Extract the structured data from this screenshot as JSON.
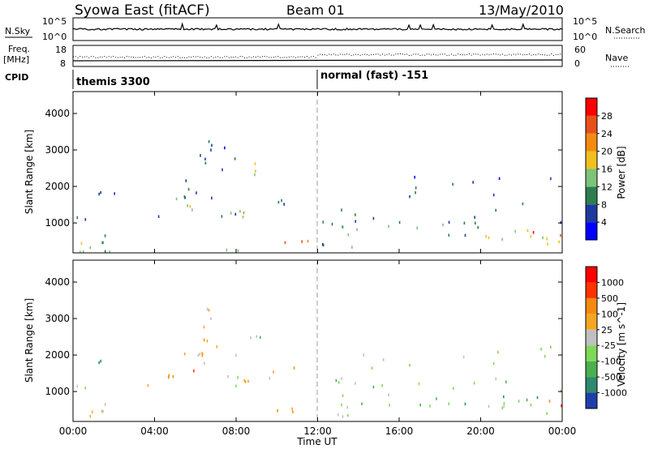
{
  "header": {
    "title": "Syowa East (fitACF)",
    "beam": "Beam 01",
    "date": "13/May/2010"
  },
  "status_panels": {
    "nsky_label": "N.Sky",
    "nsky_ticks": [
      "10^5",
      "10^0"
    ],
    "nsearch_label": "N.Search",
    "nsearch_ticks": [
      "10^5",
      "10^0"
    ],
    "freq_label_top": "Freq.",
    "freq_label_unit": "[MHz]",
    "freq_ticks": [
      "18",
      "8"
    ],
    "nave_label": "Nave",
    "nave_ticks": [
      "60",
      "0"
    ],
    "cpid_label": "CPID",
    "cpid_segments": [
      {
        "text": "themis 3300",
        "start_hour": 0
      },
      {
        "text": "normal (fast) -151",
        "start_hour": 12
      }
    ]
  },
  "x_axis": {
    "label": "Time UT",
    "ticks": [
      "00:00",
      "04:00",
      "08:00",
      "12:00",
      "16:00",
      "20:00",
      "00:00"
    ]
  },
  "chart_data": [
    {
      "type": "heatmap",
      "panel": "power",
      "xlabel": "Time UT",
      "ylabel": "Slant Range [km]",
      "xlim": [
        0,
        24
      ],
      "ylim": [
        180,
        4600
      ],
      "yticks": [
        1000,
        2000,
        3000,
        4000
      ],
      "colorbar": {
        "label": "Power [dB]",
        "ticks": [
          "4",
          "8",
          "12",
          "16",
          "20",
          "24",
          "28"
        ],
        "colors": [
          "#0000ff",
          "#1e3a9e",
          "#2e7d4f",
          "#7cc47a",
          "#f0c020",
          "#f58a10",
          "#e8501a",
          "#ff0000"
        ]
      },
      "blobs": [
        {
          "t0": 0.0,
          "t1": 2.4,
          "r0": 1100,
          "r1": 1220,
          "c": 0.15,
          "d": 0.85
        },
        {
          "t0": 1.2,
          "t1": 1.8,
          "r0": 1400,
          "r1": 2000,
          "c": 0.2,
          "d": 0.6
        },
        {
          "t0": 1.9,
          "t1": 2.2,
          "r0": 1700,
          "r1": 2100,
          "c": 0.2,
          "d": 0.5
        },
        {
          "t0": 0.3,
          "t1": 2.0,
          "r0": 300,
          "r1": 800,
          "c": 0.45,
          "d": 0.55
        },
        {
          "t0": 0.0,
          "t1": 10.0,
          "r0": 220,
          "r1": 300,
          "c": 0.3,
          "d": 0.7
        },
        {
          "t0": 3.6,
          "t1": 4.6,
          "r0": 1150,
          "r1": 1300,
          "c": 0.2,
          "d": 0.6
        },
        {
          "t0": 4.6,
          "t1": 6.2,
          "r0": 1350,
          "r1": 1700,
          "c": 0.55,
          "d": 0.75
        },
        {
          "t0": 5.2,
          "t1": 6.8,
          "r0": 1700,
          "r1": 2500,
          "c": 0.2,
          "d": 0.5
        },
        {
          "t0": 6.0,
          "t1": 8.0,
          "r0": 2000,
          "r1": 3300,
          "c": 0.2,
          "d": 0.35
        },
        {
          "t0": 7.0,
          "t1": 8.5,
          "r0": 1000,
          "r1": 1500,
          "c": 0.3,
          "d": 0.5
        },
        {
          "t0": 8.2,
          "t1": 9.8,
          "r0": 1200,
          "r1": 1400,
          "c": 0.55,
          "d": 0.7
        },
        {
          "t0": 8.4,
          "t1": 9.6,
          "r0": 2300,
          "r1": 2700,
          "c": 0.45,
          "d": 0.55
        },
        {
          "t0": 9.5,
          "t1": 11.2,
          "r0": 1400,
          "r1": 1800,
          "c": 0.3,
          "d": 0.5
        },
        {
          "t0": 9.8,
          "t1": 12.0,
          "r0": 420,
          "r1": 580,
          "c": 0.85,
          "d": 0.9
        },
        {
          "t0": 12.0,
          "t1": 15.0,
          "r0": 330,
          "r1": 470,
          "c": 0.3,
          "d": 0.7
        },
        {
          "t0": 12.0,
          "t1": 24.0,
          "r0": 1000,
          "r1": 1400,
          "c": 0.2,
          "d": 0.25
        },
        {
          "t0": 13.0,
          "t1": 20.5,
          "r0": 600,
          "r1": 1100,
          "c": 0.3,
          "d": 0.3
        },
        {
          "t0": 14.0,
          "t1": 24.0,
          "r0": 1500,
          "r1": 2300,
          "c": 0.2,
          "d": 0.12
        },
        {
          "t0": 20.0,
          "t1": 24.0,
          "r0": 400,
          "r1": 900,
          "c": 0.45,
          "d": 0.5
        },
        {
          "t0": 22.5,
          "t1": 24.0,
          "r0": 600,
          "r1": 800,
          "c": 0.8,
          "d": 0.8
        }
      ]
    },
    {
      "type": "heatmap",
      "panel": "velocity",
      "xlabel": "Time UT",
      "ylabel": "Slant Range [km]",
      "xlim": [
        0,
        24
      ],
      "ylim": [
        180,
        4600
      ],
      "yticks": [
        1000,
        2000,
        3000,
        4000
      ],
      "colorbar": {
        "label": "Velocity [m s^-1]",
        "ticks": [
          "1000",
          "500",
          "100",
          "25",
          "-25",
          "-100",
          "-500",
          "-1000"
        ],
        "colors": [
          "#1f3fa8",
          "#2d8a6e",
          "#4caf50",
          "#7ed957",
          "#c0c0c0",
          "#f5a623",
          "#f58a10",
          "#ff3300",
          "#ff0000"
        ]
      },
      "blobs": [
        {
          "t0": 0.0,
          "t1": 2.4,
          "r0": 1100,
          "r1": 1220,
          "c": 0.45,
          "d": 0.85
        },
        {
          "t0": 1.2,
          "t1": 1.8,
          "r0": 1400,
          "r1": 2000,
          "c": 0.25,
          "d": 0.6
        },
        {
          "t0": 0.3,
          "t1": 2.0,
          "r0": 300,
          "r1": 800,
          "c": 0.65,
          "d": 0.55
        },
        {
          "t0": 3.6,
          "t1": 4.6,
          "r0": 1150,
          "r1": 1300,
          "c": 0.5,
          "d": 0.6
        },
        {
          "t0": 4.6,
          "t1": 6.2,
          "r0": 1350,
          "r1": 1700,
          "c": 0.68,
          "d": 0.75
        },
        {
          "t0": 5.2,
          "t1": 6.8,
          "r0": 1700,
          "r1": 2500,
          "c": 0.62,
          "d": 0.5
        },
        {
          "t0": 6.0,
          "t1": 8.0,
          "r0": 2000,
          "r1": 3300,
          "c": 0.6,
          "d": 0.35
        },
        {
          "t0": 7.0,
          "t1": 8.5,
          "r0": 1000,
          "r1": 1500,
          "c": 0.5,
          "d": 0.5
        },
        {
          "t0": 8.2,
          "t1": 9.8,
          "r0": 1200,
          "r1": 1400,
          "c": 0.65,
          "d": 0.7
        },
        {
          "t0": 8.4,
          "t1": 9.6,
          "r0": 2300,
          "r1": 2700,
          "c": 0.4,
          "d": 0.55
        },
        {
          "t0": 9.5,
          "t1": 11.2,
          "r0": 1400,
          "r1": 1800,
          "c": 0.66,
          "d": 0.5
        },
        {
          "t0": 9.8,
          "t1": 12.0,
          "r0": 420,
          "r1": 580,
          "c": 0.6,
          "d": 0.9
        },
        {
          "t0": 12.0,
          "t1": 15.0,
          "r0": 330,
          "r1": 470,
          "c": 0.5,
          "d": 0.7
        },
        {
          "t0": 12.0,
          "t1": 24.0,
          "r0": 1000,
          "r1": 1400,
          "c": 0.35,
          "d": 0.25
        },
        {
          "t0": 13.0,
          "t1": 20.5,
          "r0": 600,
          "r1": 1100,
          "c": 0.32,
          "d": 0.3
        },
        {
          "t0": 14.0,
          "t1": 24.0,
          "r0": 1500,
          "r1": 2300,
          "c": 0.36,
          "d": 0.12
        },
        {
          "t0": 20.0,
          "t1": 24.0,
          "r0": 400,
          "r1": 900,
          "c": 0.3,
          "d": 0.5
        },
        {
          "t0": 22.5,
          "t1": 24.0,
          "r0": 600,
          "r1": 800,
          "c": 0.7,
          "d": 0.8
        }
      ]
    }
  ]
}
